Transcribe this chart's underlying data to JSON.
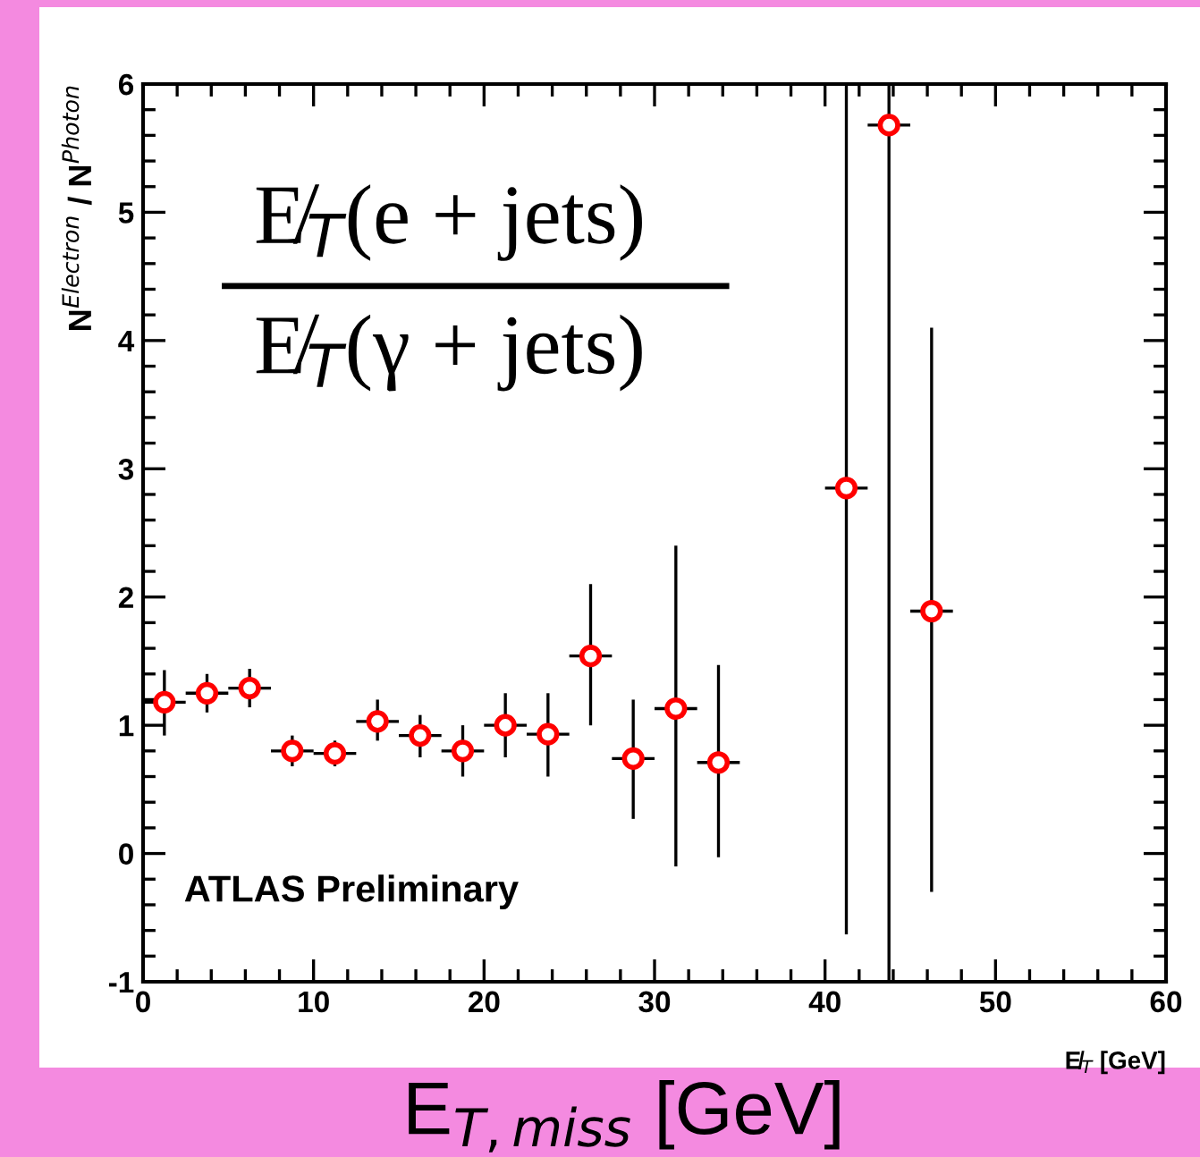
{
  "chart_data": {
    "type": "scatter",
    "ylabel": "N$^{Electron}$ / N$^{Photon}$",
    "xlabel": "E̸$_{T}$ [GeV]",
    "annotations": [
      "E̸$_{T}$(e + jets)",
      "E̸$_{T}$(γ + jets)",
      "ATLAS Preliminary",
      "E$_{T,miss}$ [GeV]"
    ],
    "x": [
      1.25,
      3.75,
      6.25,
      8.75,
      11.25,
      13.75,
      16.25,
      18.75,
      21.25,
      23.75,
      26.25,
      28.75,
      31.25,
      33.75,
      41.25,
      43.75,
      46.25
    ],
    "series": [
      {
        "color": "#ff0000",
        "values": [
          1.18,
          1.25,
          1.29,
          0.8,
          0.78,
          1.03,
          0.92,
          0.8,
          1.0,
          0.93,
          1.54,
          0.74,
          1.13,
          0.71,
          2.85,
          5.68,
          1.89
        ],
        "errors": [
          [
            0.92,
            1.43
          ],
          [
            1.1,
            1.4
          ],
          [
            1.14,
            1.44
          ],
          [
            0.68,
            0.92
          ],
          [
            0.68,
            0.88
          ],
          [
            0.88,
            1.2
          ],
          [
            0.75,
            1.08
          ],
          [
            0.6,
            1.0
          ],
          [
            0.75,
            1.25
          ],
          [
            0.6,
            1.25
          ],
          [
            1.0,
            2.1
          ],
          [
            0.27,
            1.2
          ],
          [
            -0.1,
            2.4
          ],
          [
            -0.03,
            1.47
          ],
          [
            -0.63,
            6
          ],
          [
            -1,
            6
          ],
          [
            -0.3,
            4.1
          ]
        ],
        "xerrors": [
          1.25,
          1.25,
          1.25,
          1.25,
          1.25,
          1.25,
          1.25,
          1.25,
          1.25,
          1.25,
          1.25,
          1.25,
          1.25,
          1.25,
          1.25,
          1.25,
          1.25
        ]
      }
    ],
    "marker": "circle",
    "xlim": [
      0,
      60
    ],
    "ylim": [
      -1,
      6
    ],
    "xticks": [
      0,
      10,
      20,
      30,
      40,
      50,
      60
    ],
    "yticks": [
      -1,
      0,
      1,
      2,
      3,
      4,
      5,
      6
    ],
    "grid": false,
    "legend": false
  }
}
